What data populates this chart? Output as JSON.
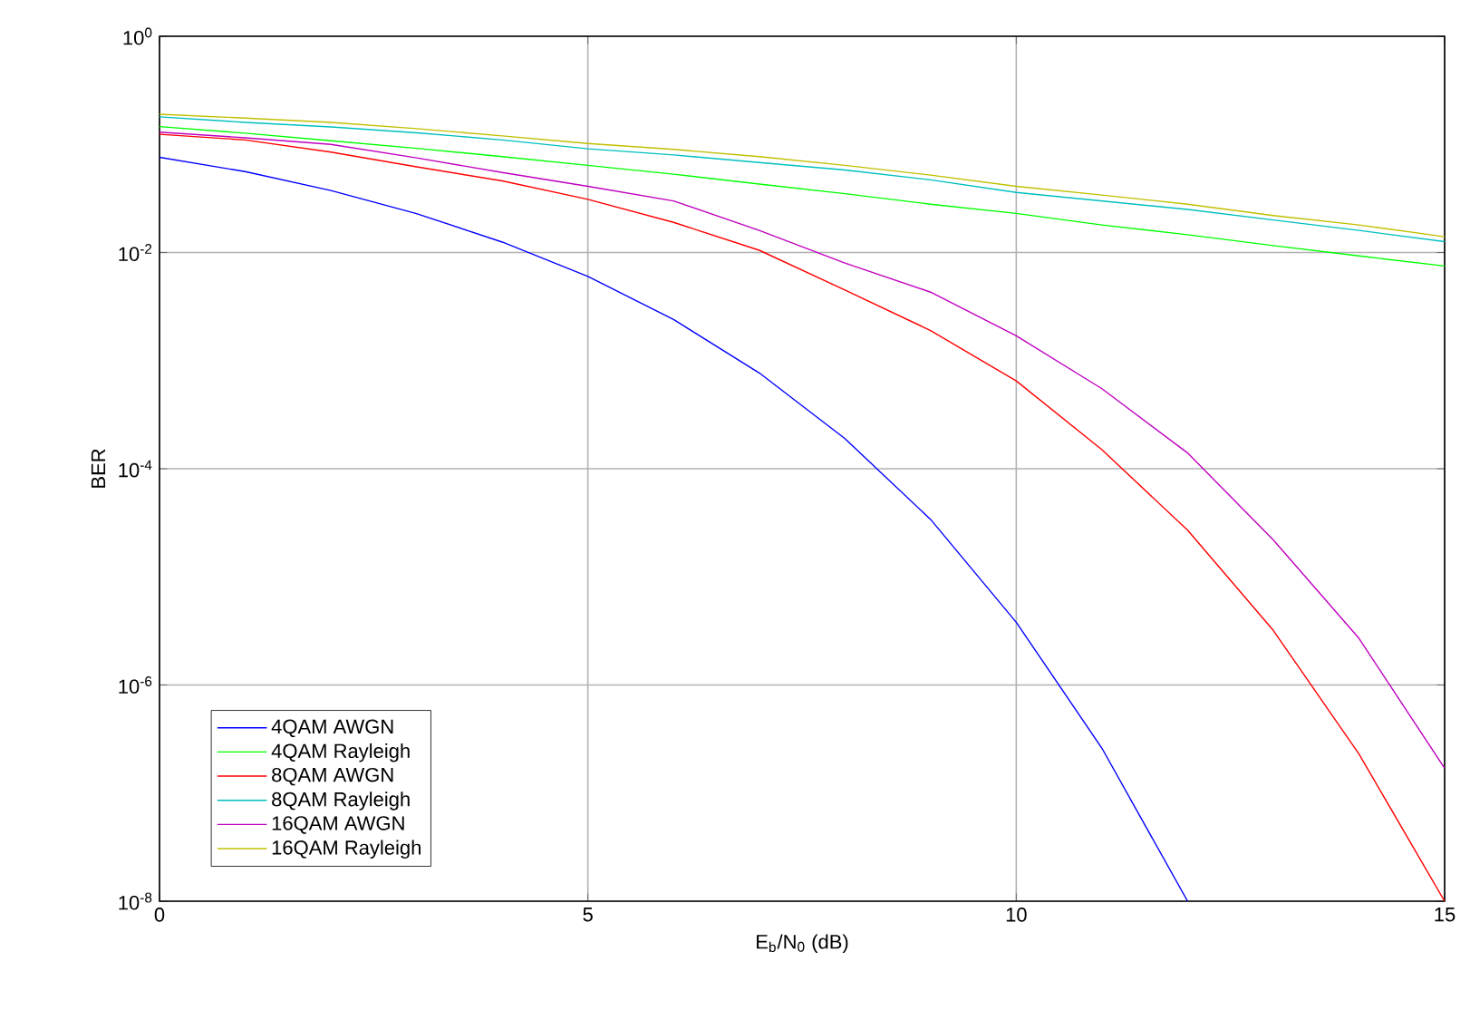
{
  "chart_data": {
    "type": "line",
    "xlabel": "E$_{b}$/N$_{0}$ (dB)",
    "ylabel": "BER",
    "log": "y",
    "grid": true,
    "legend": "bottom left",
    "marker": "none",
    "line_style": "solid",
    "xlim": [
      0,
      15
    ],
    "xticks": [
      0,
      5,
      10,
      15
    ],
    "ylim": [
      1e-08,
      1
    ],
    "yticks": [
      {
        "value": 1e-08,
        "label": "10$^{-8}$"
      },
      {
        "value": 1e-06,
        "label": "10$^{-6}$"
      },
      {
        "value": 0.0001,
        "label": "10$^{-4}$"
      },
      {
        "value": 0.01,
        "label": "10$^{-2}$"
      },
      {
        "value": 1,
        "label": "10$^{0}$"
      }
    ],
    "series": [
      {
        "name": "4QAM AWGN",
        "color": "#0000ff",
        "x": [
          0,
          1,
          2,
          3,
          4,
          5,
          6,
          7,
          8,
          9,
          10,
          11,
          12
        ],
        "values": [
          0.076,
          0.056,
          0.0375,
          0.0229,
          0.0125,
          0.006,
          0.0024,
          0.00077,
          0.00019,
          3.4e-05,
          3.8e-06,
          2.6e-07,
          1e-08
        ]
      },
      {
        "name": "4QAM Rayleigh",
        "color": "#00ff00",
        "x": [
          0,
          1,
          2,
          3,
          4,
          5,
          6,
          7,
          8,
          9,
          10,
          11,
          12,
          13,
          14,
          15
        ],
        "values": [
          0.146,
          0.127,
          0.108,
          0.092,
          0.077,
          0.064,
          0.053,
          0.043,
          0.035,
          0.028,
          0.023,
          0.018,
          0.0146,
          0.0116,
          0.0093,
          0.0075
        ]
      },
      {
        "name": "8QAM AWGN",
        "color": "#ff0000",
        "x": [
          0,
          1,
          2,
          3,
          4,
          5,
          6,
          7,
          8,
          9,
          10,
          11,
          12,
          13,
          14,
          15
        ],
        "values": [
          0.124,
          0.11,
          0.085,
          0.062,
          0.046,
          0.031,
          0.019,
          0.0105,
          0.0045,
          0.0019,
          0.00065,
          0.00015,
          2.7e-05,
          3.2e-06,
          2.3e-07,
          1e-08
        ]
      },
      {
        "name": "8QAM Rayleigh",
        "color": "#00bfbf",
        "x": [
          0,
          1,
          2,
          3,
          4,
          5,
          6,
          7,
          8,
          9,
          10,
          11,
          12,
          13,
          14,
          15
        ],
        "values": [
          0.18,
          0.16,
          0.145,
          0.128,
          0.11,
          0.091,
          0.08,
          0.068,
          0.058,
          0.047,
          0.036,
          0.03,
          0.025,
          0.02,
          0.016,
          0.0126
        ]
      },
      {
        "name": "16QAM AWGN",
        "color": "#bf00bf",
        "x": [
          0,
          1,
          2,
          3,
          4,
          5,
          6,
          7,
          8,
          9,
          10,
          11,
          12,
          13,
          14,
          15
        ],
        "values": [
          0.13,
          0.115,
          0.1,
          0.075,
          0.055,
          0.041,
          0.03,
          0.016,
          0.008,
          0.0043,
          0.0017,
          0.00055,
          0.00014,
          2.2e-05,
          2.7e-06,
          1.7e-07
        ]
      },
      {
        "name": "16QAM Rayleigh",
        "color": "#bfbf00",
        "x": [
          0,
          1,
          2,
          3,
          4,
          5,
          6,
          7,
          8,
          9,
          10,
          11,
          12,
          13,
          14,
          15
        ],
        "values": [
          0.19,
          0.175,
          0.16,
          0.14,
          0.12,
          0.102,
          0.09,
          0.077,
          0.064,
          0.052,
          0.041,
          0.034,
          0.028,
          0.022,
          0.018,
          0.014
        ]
      }
    ]
  }
}
